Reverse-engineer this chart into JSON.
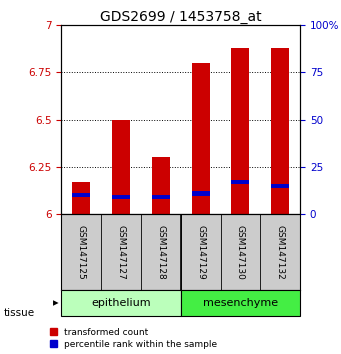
{
  "title": "GDS2699 / 1453758_at",
  "samples": [
    "GSM147125",
    "GSM147127",
    "GSM147128",
    "GSM147129",
    "GSM147130",
    "GSM147132"
  ],
  "red_values": [
    6.17,
    6.5,
    6.3,
    6.8,
    6.88,
    6.88
  ],
  "blue_values": [
    6.1,
    6.09,
    6.09,
    6.11,
    6.17,
    6.15
  ],
  "ylim_left": [
    6.0,
    7.0
  ],
  "yticks_left": [
    6.0,
    6.25,
    6.5,
    6.75,
    7.0
  ],
  "ytick_labels_left": [
    "6",
    "6.25",
    "6.5",
    "6.75",
    "7"
  ],
  "ylim_right": [
    0,
    100
  ],
  "yticks_right": [
    0,
    25,
    50,
    75,
    100
  ],
  "ytick_labels_right": [
    "0",
    "25",
    "50",
    "75",
    "100%"
  ],
  "groups": [
    {
      "label": "epithelium",
      "indices": [
        0,
        1,
        2
      ],
      "color": "#bbffbb"
    },
    {
      "label": "mesenchyme",
      "indices": [
        3,
        4,
        5
      ],
      "color": "#44ee44"
    }
  ],
  "bar_color_red": "#cc0000",
  "bar_color_blue": "#0000cc",
  "bar_width": 0.45,
  "tissue_label": "tissue",
  "legend_red": "transformed count",
  "legend_blue": "percentile rank within the sample",
  "title_fontsize": 10,
  "tick_fontsize": 7.5,
  "sample_tick_fontsize": 6.5,
  "group_label_fontsize": 8,
  "background_color": "#ffffff",
  "plot_bg_color": "#ffffff",
  "sample_label_bg": "#cccccc"
}
